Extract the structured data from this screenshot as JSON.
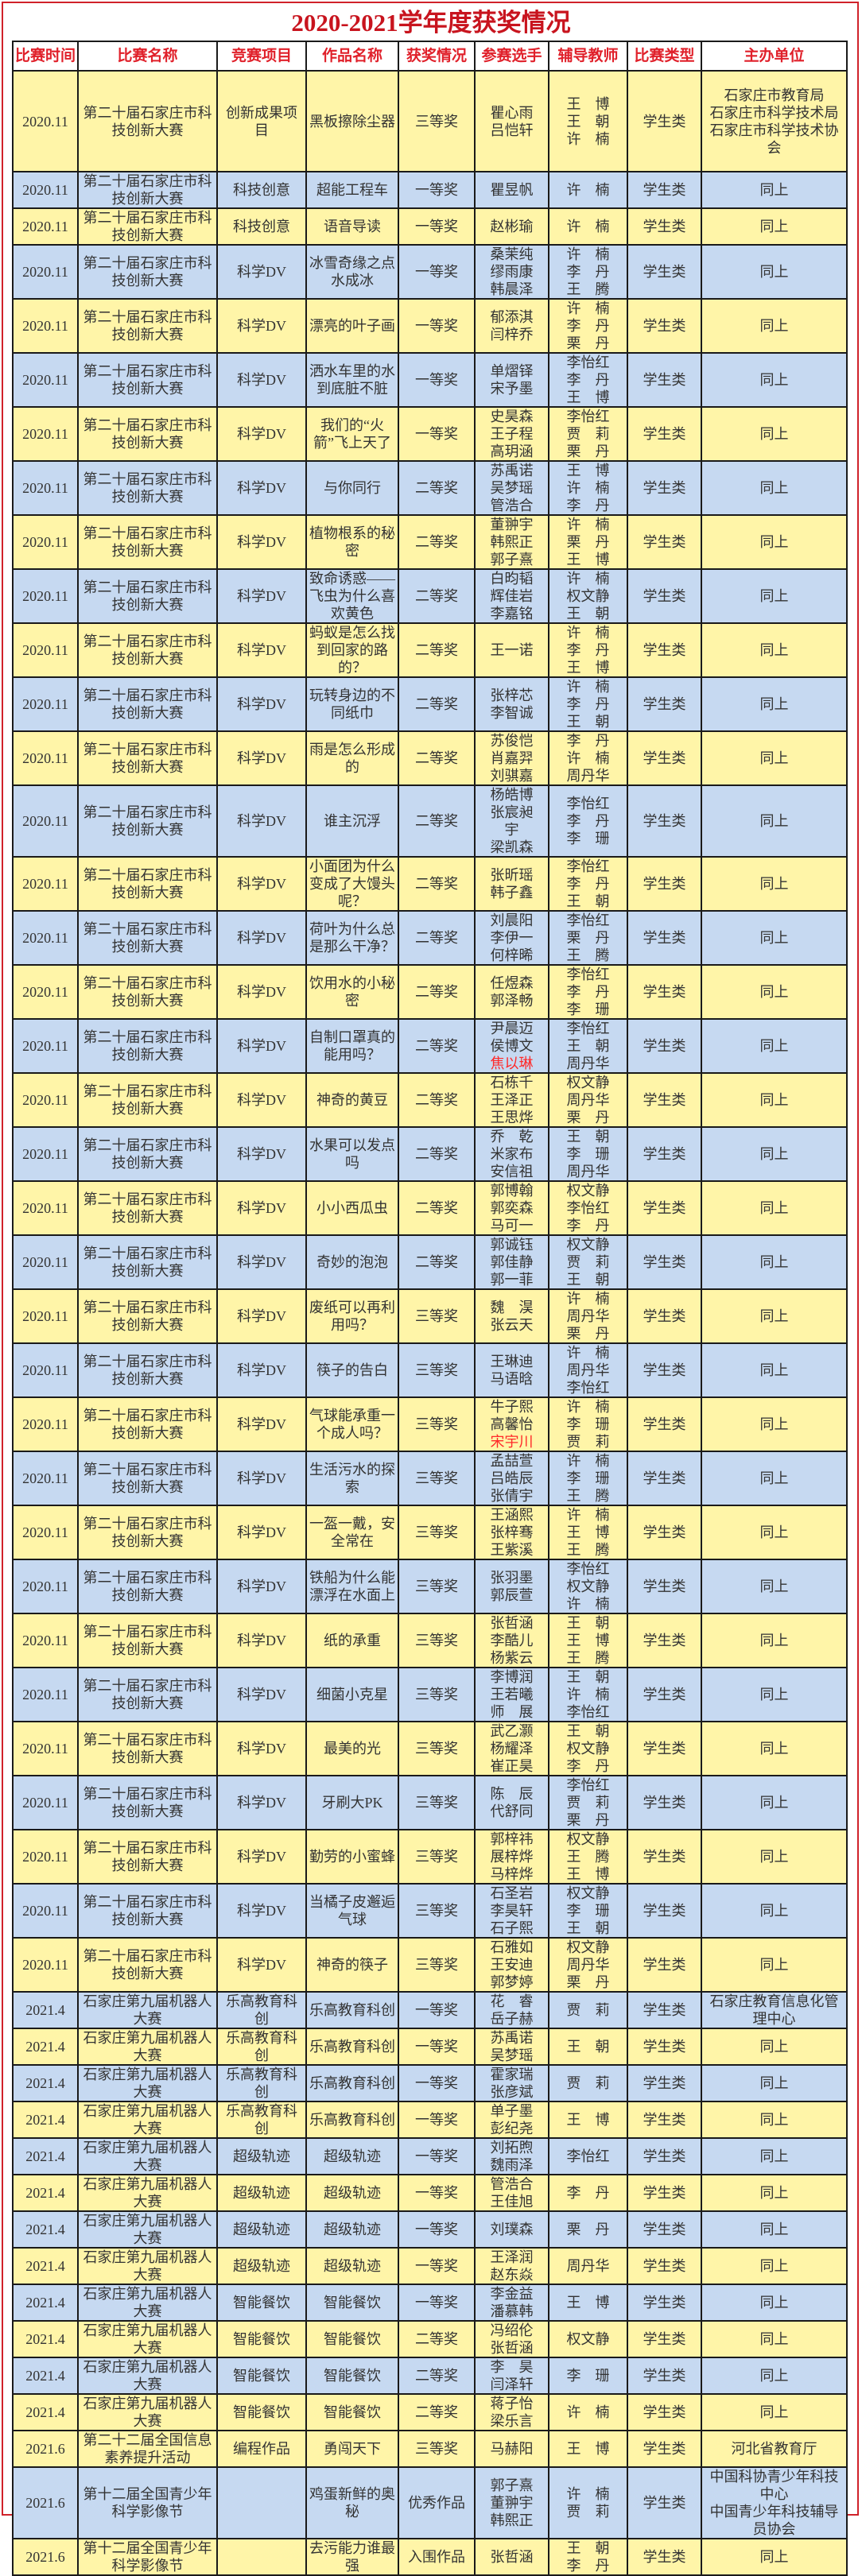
{
  "title": "2020-2021学年度获奖情况",
  "colors": {
    "title": "#c8141e",
    "header_text": "#e0202a",
    "row_yellow": "#fff5a8",
    "row_blue": "#c6d9f1",
    "flagged_name": "#ff2a2a"
  },
  "headers": [
    "比赛时间",
    "比赛名称",
    "竞赛项目",
    "作品名称",
    "获奖情况",
    "参赛选手",
    "辅导教师",
    "比赛类型",
    "主办单位"
  ],
  "rows": [
    {
      "date": "2020.11",
      "name": "第二十届石家庄市科技创新大赛",
      "project": "创新成果项目",
      "work": "黑板擦除尘器",
      "award": "三等奖",
      "players": [
        "瞿心雨",
        "吕恺轩"
      ],
      "teachers": [
        "王博",
        "王朝",
        "许楠"
      ],
      "type": "学生类",
      "unit": [
        "石家庄市教育局",
        "石家庄市科学技术局",
        "石家庄市科学技术协会"
      ]
    },
    {
      "date": "2020.11",
      "name": "第二十届石家庄市科技创新大赛",
      "project": "科技创意",
      "work": "超能工程车",
      "award": "一等奖",
      "players": [
        "瞿昱帆"
      ],
      "teachers": [
        "许楠"
      ],
      "type": "学生类",
      "unit": [
        "同上"
      ]
    },
    {
      "date": "2020.11",
      "name": "第二十届石家庄市科技创新大赛",
      "project": "科技创意",
      "work": "语音导读",
      "award": "一等奖",
      "players": [
        "赵彬瑜"
      ],
      "teachers": [
        "许楠"
      ],
      "type": "学生类",
      "unit": [
        "同上"
      ]
    },
    {
      "date": "2020.11",
      "name": "第二十届石家庄市科技创新大赛",
      "project": "科学DV",
      "work": "冰雪奇缘之点水成冰",
      "award": "一等奖",
      "players": [
        "桑茉纯",
        "缪雨康",
        "韩晨泽"
      ],
      "teachers": [
        "许楠",
        "李丹",
        "王腾"
      ],
      "type": "学生类",
      "unit": [
        "同上"
      ]
    },
    {
      "date": "2020.11",
      "name": "第二十届石家庄市科技创新大赛",
      "project": "科学DV",
      "work": "漂亮的叶子画",
      "award": "一等奖",
      "players": [
        "郁添淇",
        "闫梓乔"
      ],
      "teachers": [
        "许楠",
        "李丹",
        "栗丹"
      ],
      "type": "学生类",
      "unit": [
        "同上"
      ]
    },
    {
      "date": "2020.11",
      "name": "第二十届石家庄市科技创新大赛",
      "project": "科学DV",
      "work": "洒水车里的水到底脏不脏",
      "award": "一等奖",
      "players": [
        "单熠铎",
        "宋予墨"
      ],
      "teachers": [
        "李怡红",
        "李丹",
        "王博"
      ],
      "type": "学生类",
      "unit": [
        "同上"
      ]
    },
    {
      "date": "2020.11",
      "name": "第二十届石家庄市科技创新大赛",
      "project": "科学DV",
      "work": "我们的“火箭”飞上天了",
      "award": "一等奖",
      "players": [
        "史昊森",
        "王子程",
        "高玥涵"
      ],
      "teachers": [
        "李怡红",
        "贾莉",
        "栗丹"
      ],
      "type": "学生类",
      "unit": [
        "同上"
      ]
    },
    {
      "date": "2020.11",
      "name": "第二十届石家庄市科技创新大赛",
      "project": "科学DV",
      "work": "与你同行",
      "award": "二等奖",
      "players": [
        "苏禹诺",
        "吴梦瑶",
        "管浩合"
      ],
      "teachers": [
        "王博",
        "许楠",
        "李丹"
      ],
      "type": "学生类",
      "unit": [
        "同上"
      ]
    },
    {
      "date": "2020.11",
      "name": "第二十届石家庄市科技创新大赛",
      "project": "科学DV",
      "work": "植物根系的秘密",
      "award": "二等奖",
      "players": [
        "董翀宇",
        "韩熙正",
        "郭子熹"
      ],
      "teachers": [
        "许楠",
        "栗丹",
        "王博"
      ],
      "type": "学生类",
      "unit": [
        "同上"
      ]
    },
    {
      "date": "2020.11",
      "name": "第二十届石家庄市科技创新大赛",
      "project": "科学DV",
      "work": "致命诱惑——飞虫为什么喜欢黄色",
      "award": "二等奖",
      "players": [
        "白昀韬",
        "辉佳岩",
        "李嘉铭"
      ],
      "teachers": [
        "许楠",
        "权文静",
        "王朝"
      ],
      "type": "学生类",
      "unit": [
        "同上"
      ]
    },
    {
      "date": "2020.11",
      "name": "第二十届石家庄市科技创新大赛",
      "project": "科学DV",
      "work": "蚂蚁是怎么找到回家的路的？",
      "award": "二等奖",
      "players": [
        "王一诺"
      ],
      "teachers": [
        "许楠",
        "李丹",
        "王博"
      ],
      "type": "学生类",
      "unit": [
        "同上"
      ]
    },
    {
      "date": "2020.11",
      "name": "第二十届石家庄市科技创新大赛",
      "project": "科学DV",
      "work": "玩转身边的不同纸巾",
      "award": "二等奖",
      "players": [
        "张梓芯",
        "李智诚"
      ],
      "teachers": [
        "许楠",
        "李丹",
        "王朝"
      ],
      "type": "学生类",
      "unit": [
        "同上"
      ]
    },
    {
      "date": "2020.11",
      "name": "第二十届石家庄市科技创新大赛",
      "project": "科学DV",
      "work": "雨是怎么形成的",
      "award": "二等奖",
      "players": [
        "苏俊恺",
        "肖嘉羿",
        "刘骐嘉"
      ],
      "teachers": [
        "李丹",
        "许楠",
        "周丹华"
      ],
      "type": "学生类",
      "unit": [
        "同上"
      ]
    },
    {
      "date": "2020.11",
      "name": "第二十届石家庄市科技创新大赛",
      "project": "科学DV",
      "work": "谁主沉浮",
      "award": "二等奖",
      "players": [
        "杨皓博",
        "张宸昶宇",
        "梁凯森"
      ],
      "teachers": [
        "李怡红",
        "李丹",
        "李珊"
      ],
      "type": "学生类",
      "unit": [
        "同上"
      ]
    },
    {
      "date": "2020.11",
      "name": "第二十届石家庄市科技创新大赛",
      "project": "科学DV",
      "work": "小面团为什么变成了大馒头呢？",
      "award": "二等奖",
      "players": [
        "张昕瑶",
        "韩子鑫"
      ],
      "teachers": [
        "李怡红",
        "李丹",
        "王朝"
      ],
      "type": "学生类",
      "unit": [
        "同上"
      ]
    },
    {
      "date": "2020.11",
      "name": "第二十届石家庄市科技创新大赛",
      "project": "科学DV",
      "work": "荷叶为什么总是那么干净？",
      "award": "二等奖",
      "players": [
        "刘晨阳",
        "李伊一",
        "何梓晞"
      ],
      "teachers": [
        "李怡红",
        "栗丹",
        "王腾"
      ],
      "type": "学生类",
      "unit": [
        "同上"
      ]
    },
    {
      "date": "2020.11",
      "name": "第二十届石家庄市科技创新大赛",
      "project": "科学DV",
      "work": "饮用水的小秘密",
      "award": "二等奖",
      "players": [
        "任煜森",
        "郭泽畅"
      ],
      "teachers": [
        "李怡红",
        "李丹",
        "李珊"
      ],
      "type": "学生类",
      "unit": [
        "同上"
      ]
    },
    {
      "date": "2020.11",
      "name": "第二十届石家庄市科技创新大赛",
      "project": "科学DV",
      "work": "自制口罩真的能用吗？",
      "award": "二等奖",
      "players": [
        "尹晨迈",
        "侯博文",
        "焦以琳"
      ],
      "flagged": [
        "焦以琳"
      ],
      "teachers": [
        "李怡红",
        "王朝",
        "周丹华"
      ],
      "type": "学生类",
      "unit": [
        "同上"
      ]
    },
    {
      "date": "2020.11",
      "name": "第二十届石家庄市科技创新大赛",
      "project": "科学DV",
      "work": "神奇的黄豆",
      "award": "二等奖",
      "players": [
        "石栋千",
        "王泽正",
        "王思烨"
      ],
      "teachers": [
        "权文静",
        "周丹华",
        "栗丹"
      ],
      "type": "学生类",
      "unit": [
        "同上"
      ]
    },
    {
      "date": "2020.11",
      "name": "第二十届石家庄市科技创新大赛",
      "project": "科学DV",
      "work": "水果可以发点吗",
      "award": "二等奖",
      "players": [
        "乔乾",
        "米家布",
        "安信祖"
      ],
      "teachers": [
        "王朝",
        "李珊",
        "周丹华"
      ],
      "type": "学生类",
      "unit": [
        "同上"
      ]
    },
    {
      "date": "2020.11",
      "name": "第二十届石家庄市科技创新大赛",
      "project": "科学DV",
      "work": "小小西瓜虫",
      "award": "二等奖",
      "players": [
        "郭博翰",
        "郭奕森",
        "马可一"
      ],
      "teachers": [
        "权文静",
        "李怡红",
        "李丹"
      ],
      "type": "学生类",
      "unit": [
        "同上"
      ]
    },
    {
      "date": "2020.11",
      "name": "第二十届石家庄市科技创新大赛",
      "project": "科学DV",
      "work": "奇妙的泡泡",
      "award": "二等奖",
      "players": [
        "郭诚钰",
        "郭佳静",
        "郭一菲"
      ],
      "teachers": [
        "权文静",
        "贾莉",
        "王朝"
      ],
      "type": "学生类",
      "unit": [
        "同上"
      ]
    },
    {
      "date": "2020.11",
      "name": "第二十届石家庄市科技创新大赛",
      "project": "科学DV",
      "work": "废纸可以再利用吗？",
      "award": "三等奖",
      "players": [
        "魏淏",
        "张云天"
      ],
      "teachers": [
        "许楠",
        "周丹华",
        "栗丹"
      ],
      "type": "学生类",
      "unit": [
        "同上"
      ]
    },
    {
      "date": "2020.11",
      "name": "第二十届石家庄市科技创新大赛",
      "project": "科学DV",
      "work": "筷子的告白",
      "award": "三等奖",
      "players": [
        "王琳迪",
        "马语晗"
      ],
      "teachers": [
        "许楠",
        "周丹华",
        "李怡红"
      ],
      "type": "学生类",
      "unit": [
        "同上"
      ]
    },
    {
      "date": "2020.11",
      "name": "第二十届石家庄市科技创新大赛",
      "project": "科学DV",
      "work": "气球能承重一个成人吗？",
      "award": "三等奖",
      "players": [
        "牛子熙",
        "高馨怡",
        "宋宇川"
      ],
      "flagged": [
        "宋宇川"
      ],
      "teachers": [
        "许楠",
        "李珊",
        "贾莉"
      ],
      "type": "学生类",
      "unit": [
        "同上"
      ]
    },
    {
      "date": "2020.11",
      "name": "第二十届石家庄市科技创新大赛",
      "project": "科学DV",
      "work": "生活污水的探索",
      "award": "三等奖",
      "players": [
        "孟喆萱",
        "吕皓辰",
        "张倩宇"
      ],
      "teachers": [
        "许楠",
        "李珊",
        "王腾"
      ],
      "type": "学生类",
      "unit": [
        "同上"
      ]
    },
    {
      "date": "2020.11",
      "name": "第二十届石家庄市科技创新大赛",
      "project": "科学DV",
      "work": "一盔一戴，安全常在",
      "award": "三等奖",
      "players": [
        "王涵熙",
        "张梓骞",
        "王紫溪"
      ],
      "teachers": [
        "许楠",
        "王博",
        "王腾"
      ],
      "type": "学生类",
      "unit": [
        "同上"
      ]
    },
    {
      "date": "2020.11",
      "name": "第二十届石家庄市科技创新大赛",
      "project": "科学DV",
      "work": "铁船为什么能漂浮在水面上",
      "award": "三等奖",
      "players": [
        "张羽墨",
        "郭辰萱"
      ],
      "teachers": [
        "李怡红",
        "权文静",
        "许楠"
      ],
      "type": "学生类",
      "unit": [
        "同上"
      ]
    },
    {
      "date": "2020.11",
      "name": "第二十届石家庄市科技创新大赛",
      "project": "科学DV",
      "work": "纸的承重",
      "award": "三等奖",
      "players": [
        "张哲涵",
        "李酷儿",
        "杨紫云"
      ],
      "teachers": [
        "王朝",
        "王博",
        "王腾"
      ],
      "type": "学生类",
      "unit": [
        "同上"
      ]
    },
    {
      "date": "2020.11",
      "name": "第二十届石家庄市科技创新大赛",
      "project": "科学DV",
      "work": "细菌小克星",
      "award": "三等奖",
      "players": [
        "李博润",
        "王若曦",
        "师展"
      ],
      "teachers": [
        "王朝",
        "许楠",
        "李怡红"
      ],
      "type": "学生类",
      "unit": [
        "同上"
      ]
    },
    {
      "date": "2020.11",
      "name": "第二十届石家庄市科技创新大赛",
      "project": "科学DV",
      "work": "最美的光",
      "award": "三等奖",
      "players": [
        "武乙灏",
        "杨耀泽",
        "崔正昊"
      ],
      "teachers": [
        "王朝",
        "权文静",
        "李丹"
      ],
      "type": "学生类",
      "unit": [
        "同上"
      ]
    },
    {
      "date": "2020.11",
      "name": "第二十届石家庄市科技创新大赛",
      "project": "科学DV",
      "work": "牙刷大PK",
      "award": "三等奖",
      "players": [
        "陈辰",
        "代舒同"
      ],
      "teachers": [
        "李怡红",
        "贾莉",
        "栗丹"
      ],
      "type": "学生类",
      "unit": [
        "同上"
      ]
    },
    {
      "date": "2020.11",
      "name": "第二十届石家庄市科技创新大赛",
      "project": "科学DV",
      "work": "勤劳的小蜜蜂",
      "award": "三等奖",
      "players": [
        "郭梓祎",
        "展梓烨",
        "马梓烨"
      ],
      "teachers": [
        "权文静",
        "王腾",
        "王博"
      ],
      "type": "学生类",
      "unit": [
        "同上"
      ]
    },
    {
      "date": "2020.11",
      "name": "第二十届石家庄市科技创新大赛",
      "project": "科学DV",
      "work": "当橘子皮邂逅气球",
      "award": "三等奖",
      "players": [
        "石圣岩",
        "李昊轩",
        "石子熙"
      ],
      "teachers": [
        "权文静",
        "李珊",
        "王朝"
      ],
      "type": "学生类",
      "unit": [
        "同上"
      ]
    },
    {
      "date": "2020.11",
      "name": "第二十届石家庄市科技创新大赛",
      "project": "科学DV",
      "work": "神奇的筷子",
      "award": "三等奖",
      "players": [
        "石雅如",
        "王安迪",
        "郭梦婷"
      ],
      "teachers": [
        "权文静",
        "周丹华",
        "栗丹"
      ],
      "type": "学生类",
      "unit": [
        "同上"
      ]
    },
    {
      "date": "2021.4",
      "name": "石家庄第九届机器人大赛",
      "project": "乐高教育科创",
      "work": "乐高教育科创",
      "award": "一等奖",
      "players": [
        "花睿",
        "岳子赫"
      ],
      "teachers": [
        "贾莉"
      ],
      "type": "学生类",
      "unit": [
        "石家庄教育信息化管理中心"
      ]
    },
    {
      "date": "2021.4",
      "name": "石家庄第九届机器人大赛",
      "project": "乐高教育科创",
      "work": "乐高教育科创",
      "award": "一等奖",
      "players": [
        "苏禹诺",
        "吴梦瑶"
      ],
      "teachers": [
        "王朝"
      ],
      "type": "学生类",
      "unit": [
        "同上"
      ]
    },
    {
      "date": "2021.4",
      "name": "石家庄第九届机器人大赛",
      "project": "乐高教育科创",
      "work": "乐高教育科创",
      "award": "一等奖",
      "players": [
        "霍家瑞",
        "张彦斌"
      ],
      "teachers": [
        "贾莉"
      ],
      "type": "学生类",
      "unit": [
        "同上"
      ]
    },
    {
      "date": "2021.4",
      "name": "石家庄第九届机器人大赛",
      "project": "乐高教育科创",
      "work": "乐高教育科创",
      "award": "一等奖",
      "players": [
        "单子墨",
        "彭纪尧"
      ],
      "teachers": [
        "王博"
      ],
      "type": "学生类",
      "unit": [
        "同上"
      ]
    },
    {
      "date": "2021.4",
      "name": "石家庄第九届机器人大赛",
      "project": "超级轨迹",
      "work": "超级轨迹",
      "award": "一等奖",
      "players": [
        "刘拓煦",
        "魏雨泽"
      ],
      "teachers": [
        "李怡红"
      ],
      "type": "学生类",
      "unit": [
        "同上"
      ]
    },
    {
      "date": "2021.4",
      "name": "石家庄第九届机器人大赛",
      "project": "超级轨迹",
      "work": "超级轨迹",
      "award": "一等奖",
      "players": [
        "管浩合",
        "王佳旭"
      ],
      "teachers": [
        "李丹"
      ],
      "type": "学生类",
      "unit": [
        "同上"
      ]
    },
    {
      "date": "2021.4",
      "name": "石家庄第九届机器人大赛",
      "project": "超级轨迹",
      "work": "超级轨迹",
      "award": "一等奖",
      "players": [
        "刘璞森"
      ],
      "teachers": [
        "栗丹"
      ],
      "type": "学生类",
      "unit": [
        "同上"
      ]
    },
    {
      "date": "2021.4",
      "name": "石家庄第九届机器人大赛",
      "project": "超级轨迹",
      "work": "超级轨迹",
      "award": "一等奖",
      "players": [
        "王泽润",
        "赵东焱"
      ],
      "teachers": [
        "周丹华"
      ],
      "type": "学生类",
      "unit": [
        "同上"
      ]
    },
    {
      "date": "2021.4",
      "name": "石家庄第九届机器人大赛",
      "project": "智能餐饮",
      "work": "智能餐饮",
      "award": "一等奖",
      "players": [
        "李金益",
        "潘慕韩"
      ],
      "teachers": [
        "王博"
      ],
      "type": "学生类",
      "unit": [
        "同上"
      ]
    },
    {
      "date": "2021.4",
      "name": "石家庄第九届机器人大赛",
      "project": "智能餐饮",
      "work": "智能餐饮",
      "award": "二等奖",
      "players": [
        "冯绍伦",
        "张哲涵"
      ],
      "teachers": [
        "权文静"
      ],
      "type": "学生类",
      "unit": [
        "同上"
      ]
    },
    {
      "date": "2021.4",
      "name": "石家庄第九届机器人大赛",
      "project": "智能餐饮",
      "work": "智能餐饮",
      "award": "二等奖",
      "players": [
        "李昊",
        "闫泽轩"
      ],
      "teachers": [
        "李珊"
      ],
      "type": "学生类",
      "unit": [
        "同上"
      ]
    },
    {
      "date": "2021.4",
      "name": "石家庄第九届机器人大赛",
      "project": "智能餐饮",
      "work": "智能餐饮",
      "award": "二等奖",
      "players": [
        "蒋子怡",
        "梁乐言"
      ],
      "teachers": [
        "许楠"
      ],
      "type": "学生类",
      "unit": [
        "同上"
      ]
    },
    {
      "date": "2021.6",
      "name": "第二十二届全国信息素养提升活动",
      "project": "编程作品",
      "work": "勇闯天下",
      "award": "三等奖",
      "players": [
        "马赫阳"
      ],
      "teachers": [
        "王博"
      ],
      "type": "学生类",
      "unit": [
        "河北省教育厅"
      ]
    },
    {
      "date": "2021.6",
      "name": "第十二届全国青少年科学影像节",
      "project": "",
      "work": "鸡蛋新鲜的奥秘",
      "award": "优秀作品",
      "players": [
        "郭子熹",
        "董翀宇",
        "韩熙正"
      ],
      "teachers": [
        "许楠",
        "贾莉"
      ],
      "type": "学生类",
      "unit": [
        "中国科协青少年科技中心",
        "中国青少年科技辅导员协会"
      ]
    },
    {
      "date": "2021.6",
      "name": "第十二届全国青少年科学影像节",
      "project": "",
      "work": "去污能力谁最强",
      "award": "入围作品",
      "players": [
        "张哲涵"
      ],
      "teachers": [
        "王朝",
        "李丹"
      ],
      "type": "学生类",
      "unit": [
        "同上"
      ]
    }
  ]
}
